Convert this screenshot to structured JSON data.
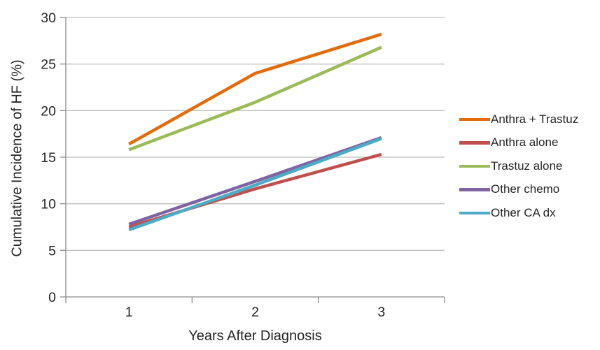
{
  "chart_data": {
    "type": "line",
    "x": [
      1,
      2,
      3
    ],
    "x_tick_labels": [
      "1",
      "2",
      "3"
    ],
    "series": [
      {
        "name": "Anthra + Trastuz",
        "color": "#E36C09",
        "values": [
          16.4,
          24.0,
          28.2
        ]
      },
      {
        "name": "Anthra alone",
        "color": "#C0504D",
        "values": [
          7.5,
          11.6,
          15.3
        ]
      },
      {
        "name": "Trastuz alone",
        "color": "#9BBB59",
        "values": [
          15.8,
          20.9,
          26.8
        ]
      },
      {
        "name": "Other chemo",
        "color": "#8064A2",
        "values": [
          7.8,
          12.4,
          17.1
        ]
      },
      {
        "name": "Other CA dx",
        "color": "#4BACC6",
        "values": [
          7.2,
          12.0,
          17.0
        ]
      }
    ],
    "xlabel": "Years After Diagnosis",
    "ylabel": "Cumulative Incidence of HF (%)",
    "ylim": [
      0,
      30
    ],
    "yticks": [
      0,
      5,
      10,
      15,
      20,
      25,
      30
    ],
    "grid": true,
    "legend_position": "right",
    "line_width": 4.5
  },
  "style": {
    "background": "#FFFFFF",
    "gridline_color": "#BFBFBF",
    "axis_color": "#8C8C8C",
    "text_color": "#262626"
  }
}
